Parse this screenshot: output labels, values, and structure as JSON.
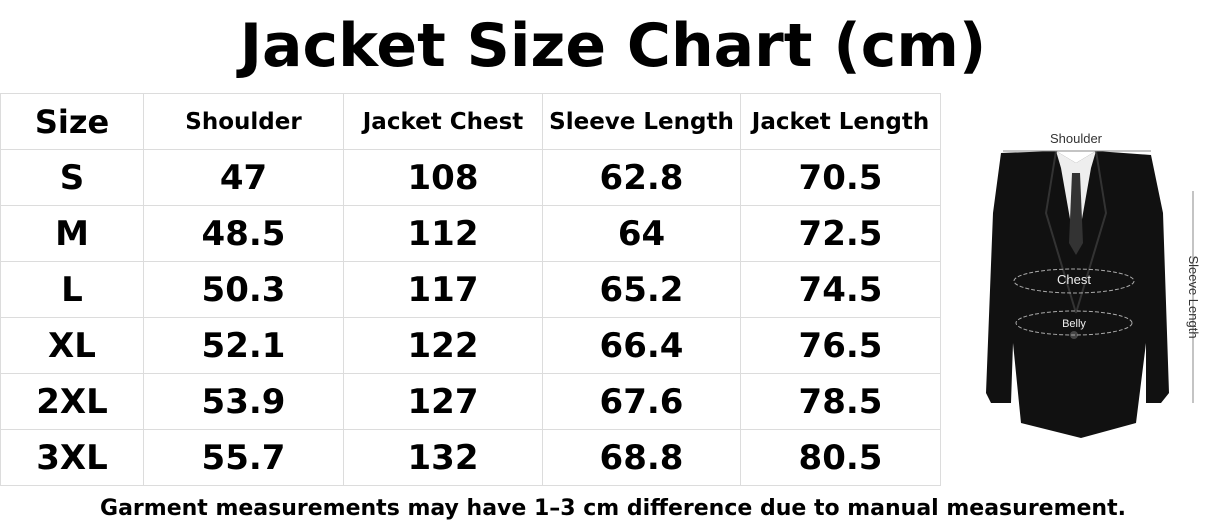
{
  "header": {
    "title": "Jacket Size Chart (cm)"
  },
  "table": {
    "columns": [
      "Size",
      "Shoulder",
      "Jacket Chest",
      "Sleeve Length",
      "Jacket Length"
    ],
    "rows": [
      [
        "S",
        "47",
        "108",
        "62.8",
        "70.5"
      ],
      [
        "M",
        "48.5",
        "112",
        "64",
        "72.5"
      ],
      [
        "L",
        "50.3",
        "117",
        "65.2",
        "74.5"
      ],
      [
        "XL",
        "52.1",
        "122",
        "66.4",
        "76.5"
      ],
      [
        "2XL",
        "53.9",
        "127",
        "67.6",
        "78.5"
      ],
      [
        "3XL",
        "55.7",
        "132",
        "68.8",
        "80.5"
      ]
    ]
  },
  "diagram": {
    "shoulder": "Shoulder",
    "chest": "Chest",
    "belly": "Belly",
    "sleeve": "Sleeve Length"
  },
  "footer": {
    "note": "Garment measurements may have 1–3 cm difference due to manual measurement."
  }
}
